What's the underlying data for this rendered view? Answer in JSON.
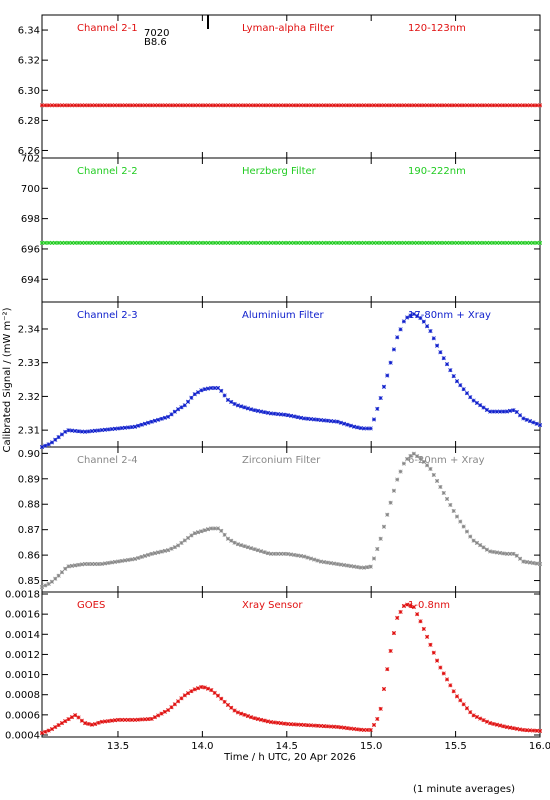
{
  "chart_data": {
    "type": "scatter",
    "x_range": [
      13.05,
      16.0
    ],
    "xlabel": "Time / h UTC, 20 Apr 2026",
    "ylabel": "Calibrated Signal / (mW m⁻²)",
    "footnote": "(1 minute averages)",
    "x_ticks": [
      "13.5",
      "14.0",
      "14.5",
      "15.0",
      "15.5",
      "16.0"
    ],
    "panels": [
      {
        "channel": "Channel 2-1",
        "filter": "Lyman-alpha Filter",
        "band": "120-123nm",
        "color": "#e01010",
        "ylim": [
          6.255,
          6.35
        ],
        "yticks": [
          "6.34",
          "6.32",
          "6.30",
          "6.28",
          "6.26"
        ],
        "extra_labels": [
          "7020",
          "B8.6"
        ],
        "series": [
          {
            "x": [
              13.05,
              16.0
            ],
            "y": [
              6.29,
              6.29
            ]
          }
        ]
      },
      {
        "channel": "Channel 2-2",
        "filter": "Herzberg Filter",
        "band": "190-222nm",
        "color": "#22cc22",
        "ylim": [
          692.5,
          702.0
        ],
        "yticks": [
          "702",
          "700",
          "698",
          "696",
          "694"
        ],
        "series": [
          {
            "x": [
              13.05,
              16.0
            ],
            "y": [
              696.4,
              696.4
            ]
          }
        ]
      },
      {
        "channel": "Channel 2-3",
        "filter": "Aluminium Filter",
        "band": "17-80nm + Xray",
        "color": "#1020cc",
        "ylim": [
          2.305,
          2.348
        ],
        "yticks": [
          "2.34",
          "2.33",
          "2.32",
          "2.31"
        ],
        "series": [
          {
            "x": [
              13.05,
              13.1,
              13.15,
              13.2,
              13.3,
              13.4,
              13.5,
              13.6,
              13.7,
              13.8,
              13.85,
              13.9,
              13.95,
              14.0,
              14.05,
              14.1,
              14.15,
              14.2,
              14.3,
              14.4,
              14.5,
              14.6,
              14.7,
              14.8,
              14.9,
              14.95,
              15.0,
              15.05,
              15.1,
              15.15,
              15.2,
              15.25,
              15.3,
              15.35,
              15.4,
              15.5,
              15.6,
              15.7,
              15.8,
              15.85,
              15.9,
              16.0
            ],
            "y": [
              2.305,
              2.306,
              2.308,
              2.31,
              2.3095,
              2.31,
              2.3105,
              2.311,
              2.3125,
              2.314,
              2.316,
              2.3175,
              2.3205,
              2.322,
              2.3225,
              2.3225,
              2.319,
              2.3175,
              2.316,
              2.315,
              2.3145,
              2.3135,
              2.313,
              2.3125,
              2.311,
              2.3105,
              2.3105,
              2.3185,
              2.327,
              2.337,
              2.343,
              2.3445,
              2.343,
              2.3395,
              2.334,
              2.325,
              2.319,
              2.3155,
              2.3155,
              2.316,
              2.3135,
              2.3115
            ]
          }
        ]
      },
      {
        "channel": "Channel 2-4",
        "filter": "Zirconium Filter",
        "band": "6-20nm + Xray",
        "color": "#888888",
        "ylim": [
          0.8455,
          0.9025
        ],
        "yticks": [
          "0.90",
          "0.89",
          "0.88",
          "0.87",
          "0.86",
          "0.85"
        ],
        "series": [
          {
            "x": [
              13.05,
              13.1,
              13.15,
              13.2,
              13.3,
              13.4,
              13.5,
              13.6,
              13.7,
              13.8,
              13.85,
              13.9,
              13.95,
              14.0,
              14.05,
              14.1,
              14.15,
              14.2,
              14.3,
              14.4,
              14.5,
              14.6,
              14.7,
              14.8,
              14.9,
              14.95,
              15.0,
              15.05,
              15.1,
              15.15,
              15.2,
              15.25,
              15.3,
              15.35,
              15.4,
              15.5,
              15.6,
              15.7,
              15.8,
              15.85,
              15.9,
              16.0
            ],
            "y": [
              0.8475,
              0.849,
              0.852,
              0.8555,
              0.8565,
              0.8565,
              0.8575,
              0.8585,
              0.8605,
              0.862,
              0.8635,
              0.866,
              0.8685,
              0.8695,
              0.8705,
              0.8705,
              0.8665,
              0.8645,
              0.8625,
              0.8605,
              0.8605,
              0.8595,
              0.8575,
              0.8565,
              0.8555,
              0.855,
              0.8555,
              0.865,
              0.877,
              0.889,
              0.897,
              0.9,
              0.8975,
              0.894,
              0.888,
              0.876,
              0.866,
              0.8615,
              0.8605,
              0.8605,
              0.8575,
              0.8565
            ]
          }
        ]
      },
      {
        "channel": "GOES",
        "filter": "Xray Sensor",
        "band": "1-0.8nm",
        "color": "#e01010",
        "ylim": [
          0.00038,
          0.00182
        ],
        "yticks": [
          "0.0018",
          "0.0016",
          "0.0014",
          "0.0012",
          "0.0010",
          "0.0008",
          "0.0006",
          "0.0004"
        ],
        "series": [
          {
            "x": [
              13.05,
              13.1,
              13.15,
              13.2,
              13.25,
              13.3,
              13.35,
              13.4,
              13.5,
              13.6,
              13.7,
              13.8,
              13.9,
              13.95,
              14.0,
              14.05,
              14.1,
              14.15,
              14.2,
              14.3,
              14.4,
              14.5,
              14.6,
              14.7,
              14.8,
              14.9,
              14.95,
              15.0,
              15.05,
              15.1,
              15.15,
              15.2,
              15.25,
              15.3,
              15.35,
              15.4,
              15.5,
              15.6,
              15.7,
              15.8,
              15.9,
              16.0
            ],
            "y": [
              0.00042,
              0.00045,
              0.0005,
              0.00055,
              0.0006,
              0.00052,
              0.0005,
              0.00053,
              0.00055,
              0.00055,
              0.00056,
              0.00065,
              0.0008,
              0.00085,
              0.00088,
              0.00085,
              0.00078,
              0.0007,
              0.00063,
              0.00057,
              0.00053,
              0.00051,
              0.0005,
              0.00049,
              0.00048,
              0.00046,
              0.00045,
              0.00045,
              0.0006,
              0.0011,
              0.00155,
              0.0017,
              0.00168,
              0.0015,
              0.0013,
              0.0011,
              0.0008,
              0.0006,
              0.00052,
              0.00048,
              0.00045,
              0.00044
            ]
          }
        ]
      }
    ]
  }
}
